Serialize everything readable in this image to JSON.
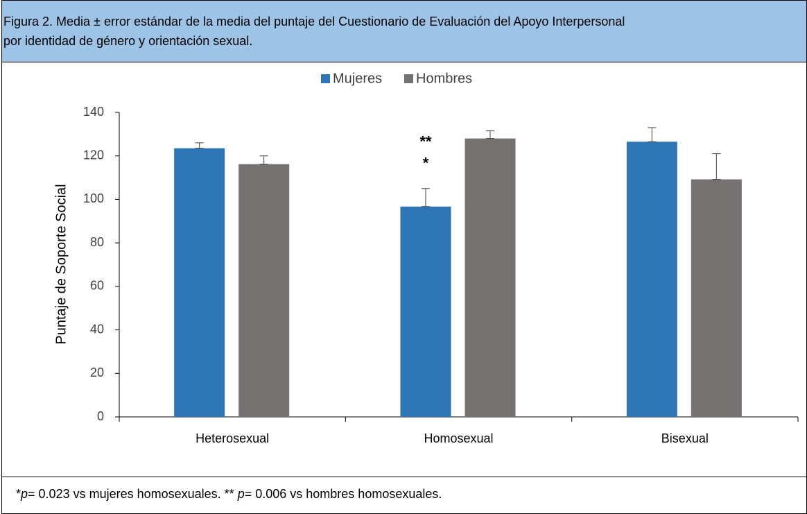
{
  "chart_data": {
    "type": "bar",
    "title": [
      "Figura 2. Media ± error estándar de la media del puntaje del Cuestionario de Evaluación del Apoyo Interpersonal",
      "por identidad de género y orientación sexual."
    ],
    "y_label": "Puntaje de Soporte Social",
    "categories": [
      "Heterosexual",
      "Homosexual",
      "Bisexual"
    ],
    "series": [
      {
        "name": "Mujeres",
        "color": "#2e75b6",
        "values": [
          123.5,
          96.7,
          126.5
        ],
        "errors": [
          2.5,
          8.3,
          6.5
        ]
      },
      {
        "name": "Hombres",
        "color": "#767171",
        "values": [
          116.2,
          128,
          109.2
        ],
        "errors": [
          3.8,
          3.5,
          11.8
        ]
      }
    ],
    "annotations": [
      "**",
      "*"
    ],
    "ylim": [
      0,
      140
    ],
    "yticks": [
      0,
      20,
      40,
      60,
      80,
      100,
      120,
      140
    ],
    "grid": false,
    "legend": "top",
    "footnote": [
      "*",
      "p",
      "= 0.023 vs mujeres homosexuales. ** ",
      "p",
      "= 0.006 vs hombres homosexuales."
    ]
  }
}
